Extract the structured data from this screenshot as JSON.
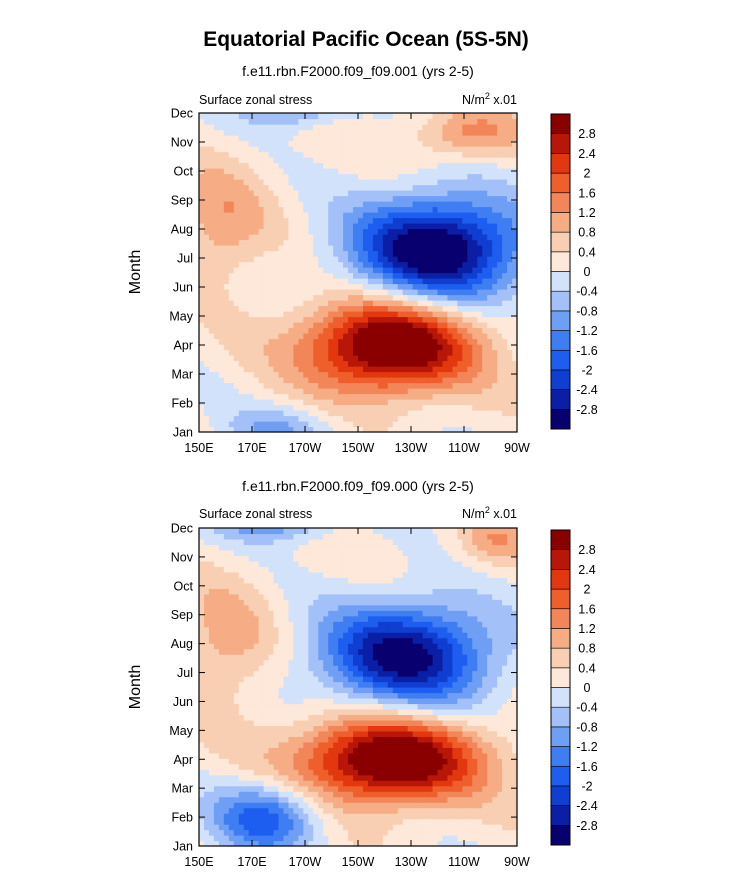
{
  "figure_title": "Equatorial Pacific Ocean (5S-5N)",
  "colors": {
    "levels": [
      "#08006e",
      "#0b1fa6",
      "#0f3ed0",
      "#1d5ef0",
      "#3f7ef2",
      "#6f9ef5",
      "#a3c1f8",
      "#d2e2fb",
      "#fde8d9",
      "#f9cfb4",
      "#f6ac84",
      "#f38658",
      "#ef5f2c",
      "#e3380f",
      "#b81707",
      "#8a0000"
    ],
    "colorbar_labels": [
      "2.8",
      "2.4",
      "2",
      "1.6",
      "1.2",
      "0.8",
      "0.4",
      "0",
      "-0.4",
      "-0.8",
      "-1.2",
      "-1.6",
      "-2",
      "-2.4",
      "-2.8"
    ]
  },
  "chart_data": [
    {
      "type": "heatmap",
      "title": "f.e11.rbn.F2000.f09_f09.001 (yrs 2-5)",
      "left_label": "Surface zonal stress",
      "right_label_base": "N/m",
      "right_label_sup": "2",
      "right_label_tail": " x.01",
      "ylabel": "Month",
      "x_ticks": [
        "150E",
        "170E",
        "170W",
        "150W",
        "130W",
        "110W",
        "90W"
      ],
      "y_ticks": [
        "Jan",
        "Feb",
        "Mar",
        "Apr",
        "May",
        "Jun",
        "Jul",
        "Aug",
        "Sep",
        "Oct",
        "Nov",
        "Dec"
      ],
      "xlim_deg_east": [
        150,
        270
      ],
      "ylim_month": [
        1,
        12
      ],
      "contour_levels": [
        -2.8,
        -2.4,
        -2.0,
        -1.6,
        -1.2,
        -0.8,
        -0.4,
        0,
        0.4,
        0.8,
        1.2,
        1.6,
        2.0,
        2.4,
        2.8
      ],
      "features": [
        {
          "lon": 222,
          "month": 4.0,
          "amp": 3.6,
          "lon_width": 32,
          "month_width": 1.6
        },
        {
          "lon": 240,
          "month": 7.3,
          "amp": -3.6,
          "lon_width": 32,
          "month_width": 1.8
        },
        {
          "lon": 158,
          "month": 8.2,
          "amp": 1.0,
          "lon_width": 18,
          "month_width": 2.0
        },
        {
          "lon": 252,
          "month": 11.3,
          "amp": 1.2,
          "lon_width": 20,
          "month_width": 0.9
        },
        {
          "lon": 185,
          "month": 12.1,
          "amp": -1.1,
          "lon_width": 20,
          "month_width": 0.6
        },
        {
          "lon": 180,
          "month": 1.1,
          "amp": -0.9,
          "lon_width": 22,
          "month_width": 0.8
        }
      ]
    },
    {
      "type": "heatmap",
      "title": "f.e11.rbn.F2000.f09_f09.000 (yrs 2-5)",
      "left_label": "Surface zonal stress",
      "right_label_base": "N/m",
      "right_label_sup": "2",
      "right_label_tail": " x.01",
      "ylabel": "Month",
      "x_ticks": [
        "150E",
        "170E",
        "170W",
        "150W",
        "130W",
        "110W",
        "90W"
      ],
      "y_ticks": [
        "Jan",
        "Feb",
        "Mar",
        "Apr",
        "May",
        "Jun",
        "Jul",
        "Aug",
        "Sep",
        "Oct",
        "Nov",
        "Dec"
      ],
      "xlim_deg_east": [
        150,
        270
      ],
      "ylim_month": [
        1,
        12
      ],
      "contour_levels": [
        -2.8,
        -2.4,
        -2.0,
        -1.6,
        -1.2,
        -0.8,
        -0.4,
        0,
        0.4,
        0.8,
        1.2,
        1.6,
        2.0,
        2.4,
        2.8
      ],
      "features": [
        {
          "lon": 222,
          "month": 4.0,
          "amp": 3.6,
          "lon_width": 34,
          "month_width": 1.5
        },
        {
          "lon": 228,
          "month": 7.6,
          "amp": -3.2,
          "lon_width": 32,
          "month_width": 1.8
        },
        {
          "lon": 160,
          "month": 8.0,
          "amp": 0.9,
          "lon_width": 18,
          "month_width": 2.2
        },
        {
          "lon": 175,
          "month": 2.0,
          "amp": -2.0,
          "lon_width": 20,
          "month_width": 1.2
        },
        {
          "lon": 178,
          "month": 12.1,
          "amp": -1.2,
          "lon_width": 22,
          "month_width": 0.6
        },
        {
          "lon": 262,
          "month": 11.6,
          "amp": 0.9,
          "lon_width": 14,
          "month_width": 0.9
        }
      ]
    }
  ]
}
